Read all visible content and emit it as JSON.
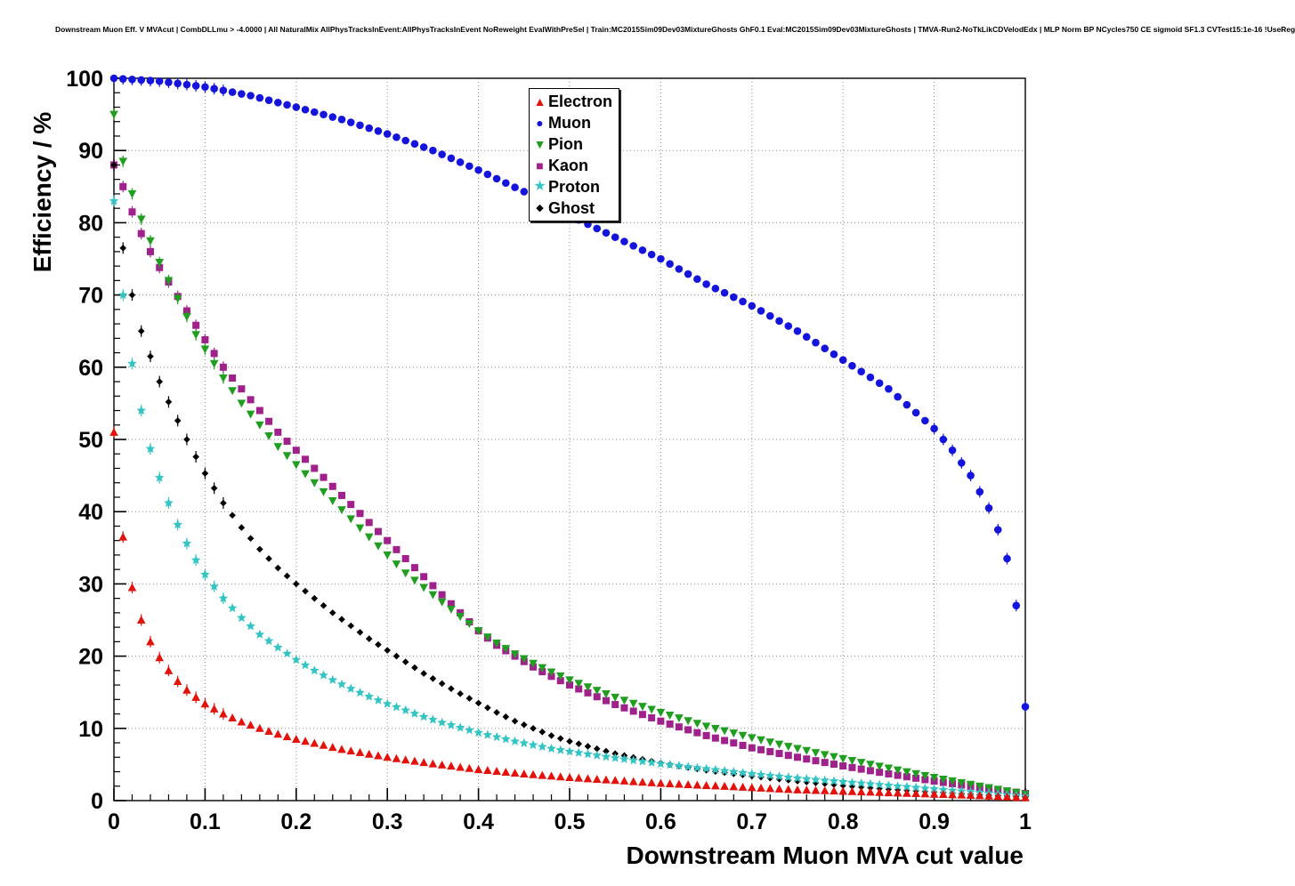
{
  "chart_data": {
    "type": "scatter",
    "title": "Downstream Muon Eff. V MVAcut | CombDLLmu > -4.0000 | All NaturalMix AllPhysTracksInEvent:AllPhysTracksInEvent NoReweight EvalWithPreSel | Train:MC2015Sim09Dev03MixtureGhosts GhF0.1 Eval:MC2015Sim09Dev03MixtureGhosts | TMVA-Run2-NoTkLikCDVelodEdx | MLP Norm BP NCycles750 CE sigmoid SF1.3 CVTest15:1e-16 !UseReg",
    "xlabel": "Downstream Muon MVA cut value",
    "ylabel": "Efficiency / %",
    "xlim": [
      0,
      1
    ],
    "ylim": [
      0,
      100
    ],
    "x_tick_values": [
      0,
      0.1,
      0.2,
      0.3,
      0.4,
      0.5,
      0.6,
      0.7,
      0.8,
      0.9,
      1
    ],
    "x_tick_labels": [
      "0",
      "0.1",
      "0.2",
      "0.3",
      "0.4",
      "0.5",
      "0.6",
      "0.7",
      "0.8",
      "0.9",
      "1"
    ],
    "y_tick_values": [
      0,
      10,
      20,
      30,
      40,
      50,
      60,
      70,
      80,
      90,
      100
    ],
    "y_tick_labels": [
      "0",
      "10",
      "20",
      "30",
      "40",
      "50",
      "60",
      "70",
      "80",
      "90",
      "100"
    ],
    "grid": true,
    "grid_color": "#8c8c8c",
    "legend_position": "top-center",
    "marker_sample_dx": 0.01,
    "error_bars": {
      "x_max": 0.12,
      "size": 0.8,
      "muon_tail_x_min": 0.9
    },
    "series": [
      {
        "name": "Electron",
        "color": "#e3120b",
        "marker": "triangle-up",
        "glyph": "▲",
        "points": [
          [
            0,
            51
          ],
          [
            0.01,
            36.5
          ],
          [
            0.02,
            29.5
          ],
          [
            0.03,
            25
          ],
          [
            0.04,
            22
          ],
          [
            0.05,
            19.8
          ],
          [
            0.06,
            18
          ],
          [
            0.07,
            16.5
          ],
          [
            0.08,
            15.3
          ],
          [
            0.09,
            14.3
          ],
          [
            0.1,
            13.4
          ],
          [
            0.12,
            12
          ],
          [
            0.14,
            10.9
          ],
          [
            0.16,
            10
          ],
          [
            0.18,
            9.2
          ],
          [
            0.2,
            8.5
          ],
          [
            0.25,
            7.1
          ],
          [
            0.3,
            6
          ],
          [
            0.35,
            5.1
          ],
          [
            0.4,
            4.3
          ],
          [
            0.45,
            3.7
          ],
          [
            0.5,
            3.2
          ],
          [
            0.55,
            2.8
          ],
          [
            0.6,
            2.4
          ],
          [
            0.65,
            2.1
          ],
          [
            0.7,
            1.8
          ],
          [
            0.75,
            1.5
          ],
          [
            0.8,
            1.3
          ],
          [
            0.85,
            1.1
          ],
          [
            0.9,
            0.9
          ],
          [
            0.95,
            0.7
          ],
          [
            1,
            0.4
          ]
        ]
      },
      {
        "name": "Muon",
        "color": "#1414dc",
        "marker": "circle",
        "glyph": "●",
        "points": [
          [
            0,
            100
          ],
          [
            0.05,
            99.6
          ],
          [
            0.1,
            98.8
          ],
          [
            0.15,
            97.6
          ],
          [
            0.2,
            96
          ],
          [
            0.25,
            94.3
          ],
          [
            0.3,
            92.3
          ],
          [
            0.35,
            90
          ],
          [
            0.4,
            87.3
          ],
          [
            0.45,
            84.3
          ],
          [
            0.5,
            81
          ],
          [
            0.55,
            78
          ],
          [
            0.6,
            75
          ],
          [
            0.65,
            71.5
          ],
          [
            0.7,
            68.5
          ],
          [
            0.75,
            65
          ],
          [
            0.8,
            61
          ],
          [
            0.85,
            57
          ],
          [
            0.9,
            51.5
          ],
          [
            0.92,
            48.5
          ],
          [
            0.94,
            45
          ],
          [
            0.96,
            40.5
          ],
          [
            0.97,
            37.5
          ],
          [
            0.98,
            33.5
          ],
          [
            0.99,
            27
          ],
          [
            1,
            13
          ]
        ]
      },
      {
        "name": "Pion",
        "color": "#1f9e1f",
        "marker": "triangle-down",
        "glyph": "▼",
        "points": [
          [
            0,
            95
          ],
          [
            0.01,
            88.5
          ],
          [
            0.02,
            84
          ],
          [
            0.03,
            80.5
          ],
          [
            0.04,
            77.5
          ],
          [
            0.05,
            74.5
          ],
          [
            0.06,
            72
          ],
          [
            0.07,
            69.5
          ],
          [
            0.08,
            67
          ],
          [
            0.09,
            64.5
          ],
          [
            0.1,
            62.5
          ],
          [
            0.12,
            58.5
          ],
          [
            0.14,
            55
          ],
          [
            0.16,
            52
          ],
          [
            0.18,
            49
          ],
          [
            0.2,
            46.5
          ],
          [
            0.22,
            44
          ],
          [
            0.24,
            41.5
          ],
          [
            0.26,
            39
          ],
          [
            0.28,
            36.5
          ],
          [
            0.3,
            34
          ],
          [
            0.32,
            31.5
          ],
          [
            0.34,
            29.5
          ],
          [
            0.36,
            27.5
          ],
          [
            0.38,
            25.5
          ],
          [
            0.4,
            23.5
          ],
          [
            0.42,
            21.8
          ],
          [
            0.44,
            20.3
          ],
          [
            0.46,
            19
          ],
          [
            0.48,
            17.8
          ],
          [
            0.5,
            16.7
          ],
          [
            0.55,
            14.3
          ],
          [
            0.6,
            12.2
          ],
          [
            0.65,
            10.3
          ],
          [
            0.7,
            8.7
          ],
          [
            0.75,
            7.2
          ],
          [
            0.8,
            5.8
          ],
          [
            0.85,
            4.5
          ],
          [
            0.9,
            3.2
          ],
          [
            0.95,
            2
          ],
          [
            1,
            0.9
          ]
        ]
      },
      {
        "name": "Kaon",
        "color": "#a0208c",
        "marker": "square",
        "glyph": "■",
        "points": [
          [
            0,
            88
          ],
          [
            0.01,
            85
          ],
          [
            0.02,
            81.5
          ],
          [
            0.03,
            78.5
          ],
          [
            0.04,
            76
          ],
          [
            0.05,
            73.8
          ],
          [
            0.06,
            71.8
          ],
          [
            0.07,
            69.8
          ],
          [
            0.08,
            67.8
          ],
          [
            0.09,
            65.8
          ],
          [
            0.1,
            63.8
          ],
          [
            0.12,
            60
          ],
          [
            0.14,
            57
          ],
          [
            0.16,
            54
          ],
          [
            0.18,
            51
          ],
          [
            0.2,
            48.5
          ],
          [
            0.22,
            46
          ],
          [
            0.24,
            43.5
          ],
          [
            0.26,
            41
          ],
          [
            0.28,
            38.5
          ],
          [
            0.3,
            36
          ],
          [
            0.32,
            33.5
          ],
          [
            0.34,
            31
          ],
          [
            0.36,
            28.5
          ],
          [
            0.38,
            26
          ],
          [
            0.4,
            23.5
          ],
          [
            0.42,
            21.5
          ],
          [
            0.44,
            20
          ],
          [
            0.46,
            18.5
          ],
          [
            0.48,
            17.2
          ],
          [
            0.5,
            16
          ],
          [
            0.55,
            13.3
          ],
          [
            0.6,
            11
          ],
          [
            0.65,
            9
          ],
          [
            0.7,
            7.3
          ],
          [
            0.75,
            6
          ],
          [
            0.8,
            4.8
          ],
          [
            0.85,
            3.7
          ],
          [
            0.9,
            2.7
          ],
          [
            0.95,
            1.8
          ],
          [
            1,
            1
          ]
        ]
      },
      {
        "name": "Proton",
        "color": "#35c4c4",
        "marker": "star",
        "glyph": "★",
        "points": [
          [
            0,
            83
          ],
          [
            0.01,
            70
          ],
          [
            0.02,
            60.5
          ],
          [
            0.03,
            54
          ],
          [
            0.04,
            48.7
          ],
          [
            0.05,
            44.7
          ],
          [
            0.06,
            41.2
          ],
          [
            0.07,
            38.2
          ],
          [
            0.08,
            35.6
          ],
          [
            0.09,
            33.3
          ],
          [
            0.1,
            31.3
          ],
          [
            0.12,
            28
          ],
          [
            0.14,
            25.3
          ],
          [
            0.16,
            23
          ],
          [
            0.18,
            21.2
          ],
          [
            0.2,
            19.5
          ],
          [
            0.22,
            18
          ],
          [
            0.24,
            16.7
          ],
          [
            0.26,
            15.5
          ],
          [
            0.28,
            14.4
          ],
          [
            0.3,
            13.4
          ],
          [
            0.32,
            12.5
          ],
          [
            0.34,
            11.6
          ],
          [
            0.36,
            10.8
          ],
          [
            0.38,
            10.1
          ],
          [
            0.4,
            9.4
          ],
          [
            0.42,
            8.8
          ],
          [
            0.44,
            8.2
          ],
          [
            0.46,
            7.7
          ],
          [
            0.48,
            7.2
          ],
          [
            0.5,
            6.8
          ],
          [
            0.55,
            5.9
          ],
          [
            0.6,
            5.1
          ],
          [
            0.65,
            4.4
          ],
          [
            0.7,
            3.7
          ],
          [
            0.75,
            3.1
          ],
          [
            0.8,
            2.6
          ],
          [
            0.85,
            2.1
          ],
          [
            0.9,
            1.6
          ],
          [
            0.95,
            1.1
          ],
          [
            1,
            0.6
          ]
        ]
      },
      {
        "name": "Ghost",
        "color": "#000000",
        "marker": "diamond",
        "glyph": "◆",
        "points": [
          [
            0,
            88
          ],
          [
            0.01,
            76.5
          ],
          [
            0.02,
            70
          ],
          [
            0.03,
            65
          ],
          [
            0.04,
            61.5
          ],
          [
            0.05,
            58
          ],
          [
            0.06,
            55.2
          ],
          [
            0.07,
            52.6
          ],
          [
            0.08,
            50
          ],
          [
            0.09,
            47.6
          ],
          [
            0.1,
            45.3
          ],
          [
            0.12,
            41.2
          ],
          [
            0.14,
            37.8
          ],
          [
            0.16,
            34.8
          ],
          [
            0.18,
            32.2
          ],
          [
            0.2,
            30
          ],
          [
            0.22,
            28
          ],
          [
            0.24,
            26
          ],
          [
            0.26,
            24.2
          ],
          [
            0.28,
            22.4
          ],
          [
            0.3,
            20.8
          ],
          [
            0.32,
            19.2
          ],
          [
            0.34,
            17.6
          ],
          [
            0.36,
            16.2
          ],
          [
            0.38,
            14.8
          ],
          [
            0.4,
            13.5
          ],
          [
            0.42,
            12.2
          ],
          [
            0.44,
            11
          ],
          [
            0.46,
            10
          ],
          [
            0.48,
            9
          ],
          [
            0.5,
            8.2
          ],
          [
            0.55,
            6.5
          ],
          [
            0.6,
            5.2
          ],
          [
            0.65,
            4.2
          ],
          [
            0.7,
            3.4
          ],
          [
            0.75,
            2.7
          ],
          [
            0.8,
            2.1
          ],
          [
            0.85,
            1.6
          ],
          [
            0.9,
            1.2
          ],
          [
            0.95,
            0.8
          ],
          [
            1,
            0.5
          ]
        ]
      }
    ]
  }
}
